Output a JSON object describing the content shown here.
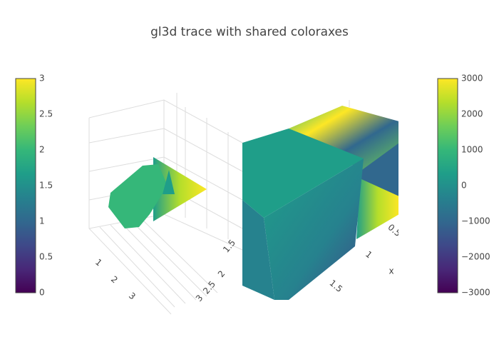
{
  "chart_data": {
    "type": "surface3d",
    "title": "gl3d trace with shared coloraxes",
    "colorscale": [
      "#440154",
      "#482878",
      "#3e4989",
      "#31688e",
      "#26828e",
      "#1f9e89",
      "#35b779",
      "#6ece58",
      "#b5de2b",
      "#fde725"
    ],
    "coloraxes": [
      {
        "lim": [
          0,
          3
        ],
        "ticks": [
          0,
          0.5,
          1,
          1.5,
          2,
          2.5,
          3
        ]
      },
      {
        "lim": [
          -3000,
          3000
        ],
        "ticks": [
          {
            "value": -3000,
            "label": "−3000"
          },
          {
            "value": -2000,
            "label": "−2000"
          },
          {
            "value": -1000,
            "label": "−1000"
          },
          0,
          1000,
          2000,
          3000
        ]
      }
    ],
    "scenes": [
      {
        "xticks": [
          1,
          2,
          3
        ],
        "yticks": [
          1.5,
          2,
          2.5,
          3
        ]
      },
      {
        "xticks": [
          0.5,
          1,
          1.5
        ],
        "xlabel": "x"
      }
    ]
  }
}
